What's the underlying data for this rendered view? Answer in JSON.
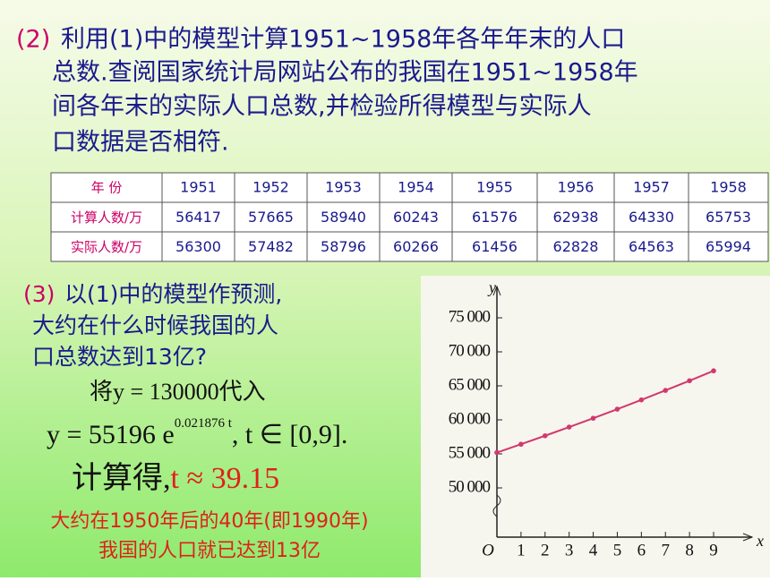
{
  "section2": {
    "label": "(2)",
    "lines": [
      "利用(1)中的模型计算1951~1958年各年年末的人口",
      "总数.查阅国家统计局网站公布的我国在1951~1958年",
      "间各年末的实际人口总数,并检验所得模型与实际人",
      "口数据是否相符."
    ]
  },
  "table": {
    "header": [
      "年  份",
      "1951",
      "1952",
      "1953",
      "1954",
      "1955",
      "1956",
      "1957",
      "1958"
    ],
    "rows": [
      [
        "计算人数/万",
        56417,
        57665,
        58940,
        60243,
        61576,
        62938,
        64330,
        65753
      ],
      [
        "实际人数/万",
        56300,
        57482,
        58796,
        60266,
        61456,
        62828,
        64563,
        65994
      ]
    ]
  },
  "section3": {
    "label": "(3)",
    "lines": [
      "以(1)中的模型作预测,",
      "大约在什么时候我国的人",
      "口总数达到13亿?"
    ]
  },
  "solution": {
    "substitute": "将y = 130000代入",
    "formula_base": "y = 55196 e",
    "formula_exp": "0.021876 t",
    "formula_tail": ", t ∈ [0,9].",
    "result_text": "计算得,",
    "result_value": "t ≈ 39.15"
  },
  "conclusion": [
    "大约在1950年后的40年(即1990年)",
    "我国的人口就已达到13亿"
  ],
  "chart_data": {
    "type": "line",
    "x_label": "x",
    "y_label": "y",
    "x": [
      0,
      1,
      2,
      3,
      4,
      5,
      6,
      7,
      8,
      9
    ],
    "series": [
      {
        "color": "#d2386e",
        "values": [
          55196,
          56417,
          57665,
          58940,
          60243,
          61576,
          62938,
          64330,
          65753,
          67208
        ]
      }
    ],
    "xlim": [
      0,
      9
    ],
    "xticks": [
      {
        "value": 0,
        "label": "O"
      },
      1,
      2,
      3,
      4,
      5,
      6,
      7,
      8,
      9
    ],
    "ylim": [
      50000,
      77000
    ],
    "yticks": [
      {
        "value": 50000,
        "label": "50 000"
      },
      {
        "value": 55000,
        "label": "55 000"
      },
      {
        "value": 60000,
        "label": "60 000"
      },
      {
        "value": 65000,
        "label": "65 000"
      },
      {
        "value": 70000,
        "label": "70 000"
      },
      {
        "value": 75000,
        "label": "75 000"
      }
    ]
  }
}
